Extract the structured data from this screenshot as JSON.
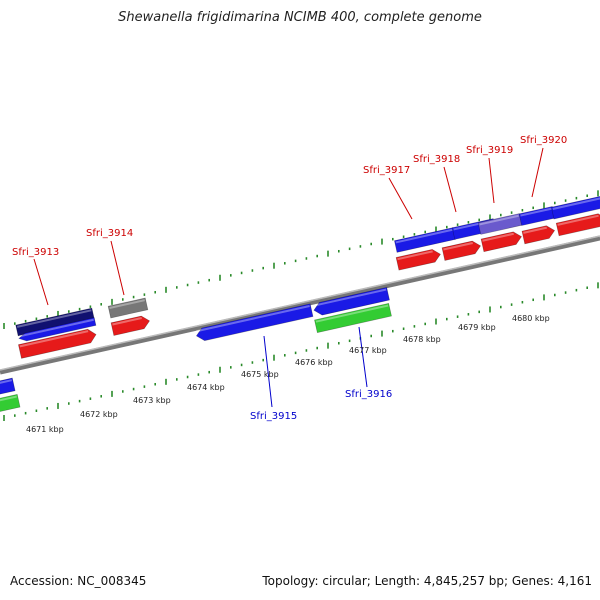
{
  "title": "Shewanella frigidimarina NCIMB 400, complete genome",
  "footer": {
    "accession": "Accession: NC_008345",
    "topology": "Topology: circular; Length: 4,845,257 bp; Genes: 4,161"
  },
  "scale_labels": [
    "4671 kbp",
    "4672 kbp",
    "4673 kbp",
    "4674 kbp",
    "4675 kbp",
    "4676 kbp",
    "4677 kbp",
    "4678 kbp",
    "4679 kbp",
    "4680 kbp"
  ],
  "gene_labels_top": [
    "Sfri_3913",
    "Sfri_3914",
    "Sfri_3917",
    "Sfri_3918",
    "Sfri_3919",
    "Sfri_3920"
  ],
  "gene_labels_bottom": [
    "Sfri_3915",
    "Sfri_3916"
  ],
  "colors": {
    "label_top": "#cc0000",
    "label_bottom": "#0000cc",
    "cds_blue": "#1a1ae6",
    "cds_red": "#e61a1a",
    "cds_green": "#33cc33",
    "cds_gray": "#777777",
    "cds_navy": "#101070",
    "cds_purple": "#6a5acd",
    "tick": "#2a8a2a",
    "backbone": "#888888"
  }
}
